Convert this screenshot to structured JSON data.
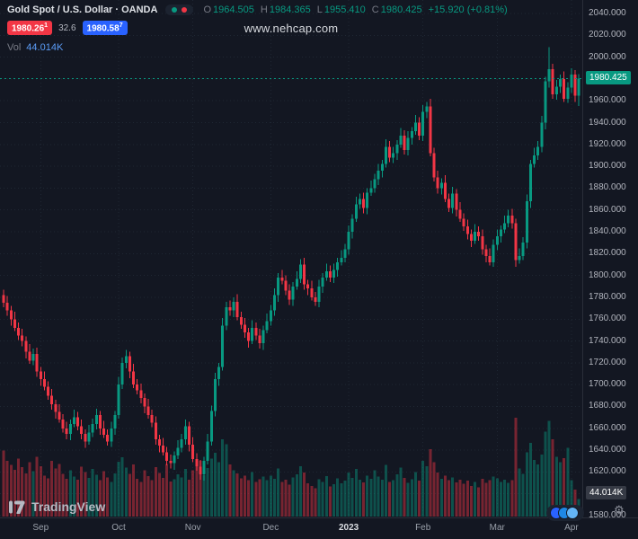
{
  "header": {
    "title": "Gold Spot / U.S. Dollar · OANDA",
    "ohlc": {
      "o_label": "O",
      "o_value": "1964.505",
      "h_label": "H",
      "h_value": "1984.365",
      "l_label": "L",
      "l_value": "1955.410",
      "c_label": "C",
      "c_value": "1980.425",
      "change": "+15.920 (+0.81%)"
    },
    "sell_price": "1980.26",
    "sell_sup": "1",
    "spread": "32.6",
    "buy_price": "1980.58",
    "buy_sup": "7",
    "vol_label": "Vol",
    "vol_value": "44.014K"
  },
  "watermark": "www.nehcap.com",
  "footer": {
    "brand": "TradingView"
  },
  "axis": {
    "current_price_label": "1980.425",
    "volume_axis_label": "44.014K"
  },
  "colors": {
    "background": "#131722",
    "grid": "#1f2733",
    "up": "#089981",
    "down": "#f23645",
    "sell_badge_bg": "#f23645",
    "buy_badge_bg": "#2962ff",
    "price_badge_bg": "#089981",
    "volume_badge_bg": "#363a45",
    "text": "#b2b5be",
    "text_dim": "#787b86",
    "vol_value_color": "#5b9cf6"
  },
  "chart_data": {
    "type": "candlestick",
    "title": "Gold Spot / U.S. Dollar · OANDA, daily",
    "legend_position": "top-left",
    "grid": true,
    "price_range": [
      1580,
      2040
    ],
    "grid_step": 20,
    "current_price": 1980.425,
    "last_volume_k": 44.014,
    "y_ticks": [
      "2040.000",
      "2020.000",
      "2000.000",
      "1980.000",
      "1960.000",
      "1940.000",
      "1920.000",
      "1900.000",
      "1880.000",
      "1860.000",
      "1840.000",
      "1820.000",
      "1800.000",
      "1780.000",
      "1760.000",
      "1740.000",
      "1720.000",
      "1700.000",
      "1680.000",
      "1660.000",
      "1640.000",
      "1620.000",
      "1600.000",
      "1580.000"
    ],
    "x_ticks": [
      {
        "label": "Sep",
        "i": 10,
        "strong": false
      },
      {
        "label": "Oct",
        "i": 31,
        "strong": false
      },
      {
        "label": "Nov",
        "i": 51,
        "strong": false
      },
      {
        "label": "Dec",
        "i": 72,
        "strong": false
      },
      {
        "label": "2023",
        "i": 93,
        "strong": true
      },
      {
        "label": "Feb",
        "i": 113,
        "strong": false
      },
      {
        "label": "Mar",
        "i": 133,
        "strong": false
      },
      {
        "label": "Apr",
        "i": 153,
        "strong": false
      }
    ],
    "candles_ohlc": [
      [
        1782,
        1787,
        1771,
        1775
      ],
      [
        1775,
        1781,
        1763,
        1768
      ],
      [
        1768,
        1772,
        1754,
        1760
      ],
      [
        1760,
        1767,
        1749,
        1752
      ],
      [
        1752,
        1757,
        1741,
        1745
      ],
      [
        1745,
        1751,
        1735,
        1740
      ],
      [
        1740,
        1744,
        1724,
        1730
      ],
      [
        1730,
        1737,
        1719,
        1722
      ],
      [
        1722,
        1733,
        1718,
        1728
      ],
      [
        1728,
        1734,
        1707,
        1712
      ],
      [
        1712,
        1716,
        1699,
        1705
      ],
      [
        1705,
        1712,
        1695,
        1698
      ],
      [
        1698,
        1703,
        1686,
        1690
      ],
      [
        1690,
        1696,
        1677,
        1682
      ],
      [
        1682,
        1686,
        1669,
        1675
      ],
      [
        1675,
        1682,
        1665,
        1668
      ],
      [
        1668,
        1673,
        1656,
        1660
      ],
      [
        1660,
        1666,
        1650,
        1655
      ],
      [
        1655,
        1668,
        1649,
        1664
      ],
      [
        1664,
        1677,
        1661,
        1670
      ],
      [
        1670,
        1675,
        1658,
        1662
      ],
      [
        1662,
        1668,
        1650,
        1655
      ],
      [
        1655,
        1659,
        1642,
        1648
      ],
      [
        1648,
        1663,
        1645,
        1656
      ],
      [
        1656,
        1669,
        1652,
        1664
      ],
      [
        1664,
        1678,
        1659,
        1672
      ],
      [
        1672,
        1676,
        1654,
        1660
      ],
      [
        1660,
        1667,
        1651,
        1654
      ],
      [
        1654,
        1659,
        1644,
        1648
      ],
      [
        1648,
        1666,
        1643,
        1660
      ],
      [
        1660,
        1676,
        1654,
        1672
      ],
      [
        1672,
        1707,
        1669,
        1700
      ],
      [
        1700,
        1725,
        1696,
        1720
      ],
      [
        1720,
        1732,
        1715,
        1726
      ],
      [
        1726,
        1730,
        1706,
        1712
      ],
      [
        1712,
        1719,
        1697,
        1700
      ],
      [
        1700,
        1705,
        1691,
        1695
      ],
      [
        1695,
        1701,
        1683,
        1688
      ],
      [
        1688,
        1692,
        1674,
        1680
      ],
      [
        1680,
        1687,
        1669,
        1672
      ],
      [
        1672,
        1677,
        1661,
        1665
      ],
      [
        1665,
        1671,
        1645,
        1650
      ],
      [
        1650,
        1654,
        1638,
        1644
      ],
      [
        1644,
        1651,
        1635,
        1638
      ],
      [
        1638,
        1643,
        1626,
        1630
      ],
      [
        1630,
        1636,
        1623,
        1628
      ],
      [
        1628,
        1639,
        1622,
        1635
      ],
      [
        1635,
        1649,
        1632,
        1642
      ],
      [
        1642,
        1655,
        1638,
        1650
      ],
      [
        1650,
        1668,
        1645,
        1662
      ],
      [
        1662,
        1666,
        1639,
        1645
      ],
      [
        1645,
        1652,
        1629,
        1632
      ],
      [
        1632,
        1637,
        1621,
        1625
      ],
      [
        1625,
        1631,
        1613,
        1618
      ],
      [
        1618,
        1634,
        1612,
        1630
      ],
      [
        1630,
        1655,
        1627,
        1648
      ],
      [
        1648,
        1681,
        1644,
        1676
      ],
      [
        1676,
        1711,
        1671,
        1705
      ],
      [
        1705,
        1720,
        1699,
        1716
      ],
      [
        1716,
        1761,
        1713,
        1754
      ],
      [
        1754,
        1776,
        1750,
        1771
      ],
      [
        1771,
        1777,
        1763,
        1768
      ],
      [
        1768,
        1780,
        1762,
        1776
      ],
      [
        1776,
        1783,
        1759,
        1762
      ],
      [
        1762,
        1767,
        1751,
        1755
      ],
      [
        1755,
        1761,
        1743,
        1748
      ],
      [
        1748,
        1752,
        1734,
        1740
      ],
      [
        1740,
        1759,
        1737,
        1752
      ],
      [
        1752,
        1757,
        1741,
        1745
      ],
      [
        1745,
        1751,
        1733,
        1738
      ],
      [
        1738,
        1754,
        1732,
        1750
      ],
      [
        1750,
        1765,
        1747,
        1758
      ],
      [
        1758,
        1773,
        1754,
        1768
      ],
      [
        1768,
        1788,
        1763,
        1782
      ],
      [
        1782,
        1802,
        1776,
        1798
      ],
      [
        1798,
        1805,
        1792,
        1795
      ],
      [
        1795,
        1800,
        1782,
        1786
      ],
      [
        1786,
        1792,
        1773,
        1778
      ],
      [
        1778,
        1794,
        1772,
        1790
      ],
      [
        1790,
        1804,
        1787,
        1797
      ],
      [
        1797,
        1815,
        1793,
        1810
      ],
      [
        1810,
        1816,
        1787,
        1792
      ],
      [
        1792,
        1796,
        1782,
        1788
      ],
      [
        1788,
        1795,
        1777,
        1780
      ],
      [
        1780,
        1785,
        1772,
        1776
      ],
      [
        1776,
        1796,
        1771,
        1790
      ],
      [
        1790,
        1802,
        1784,
        1798
      ],
      [
        1798,
        1811,
        1795,
        1804
      ],
      [
        1804,
        1809,
        1794,
        1798
      ],
      [
        1798,
        1811,
        1793,
        1805
      ],
      [
        1805,
        1816,
        1799,
        1812
      ],
      [
        1812,
        1823,
        1809,
        1816
      ],
      [
        1816,
        1829,
        1812,
        1824
      ],
      [
        1824,
        1846,
        1819,
        1840
      ],
      [
        1840,
        1856,
        1834,
        1852
      ],
      [
        1852,
        1872,
        1849,
        1865
      ],
      [
        1865,
        1875,
        1861,
        1870
      ],
      [
        1870,
        1876,
        1857,
        1862
      ],
      [
        1862,
        1880,
        1856,
        1876
      ],
      [
        1876,
        1887,
        1873,
        1880
      ],
      [
        1880,
        1893,
        1876,
        1888
      ],
      [
        1888,
        1902,
        1883,
        1896
      ],
      [
        1896,
        1906,
        1890,
        1902
      ],
      [
        1902,
        1925,
        1899,
        1918
      ],
      [
        1918,
        1923,
        1904,
        1908
      ],
      [
        1908,
        1918,
        1903,
        1912
      ],
      [
        1912,
        1924,
        1906,
        1920
      ],
      [
        1920,
        1935,
        1917,
        1928
      ],
      [
        1928,
        1933,
        1911,
        1915
      ],
      [
        1915,
        1932,
        1910,
        1926
      ],
      [
        1926,
        1936,
        1920,
        1932
      ],
      [
        1932,
        1947,
        1929,
        1940
      ],
      [
        1940,
        1945,
        1924,
        1928
      ],
      [
        1928,
        1956,
        1923,
        1950
      ],
      [
        1950,
        1959,
        1944,
        1955
      ],
      [
        1955,
        1962,
        1909,
        1912
      ],
      [
        1912,
        1917,
        1886,
        1890
      ],
      [
        1890,
        1896,
        1875,
        1880
      ],
      [
        1880,
        1889,
        1874,
        1885
      ],
      [
        1885,
        1892,
        1867,
        1870
      ],
      [
        1870,
        1875,
        1858,
        1862
      ],
      [
        1862,
        1881,
        1857,
        1875
      ],
      [
        1875,
        1879,
        1854,
        1860
      ],
      [
        1860,
        1867,
        1849,
        1852
      ],
      [
        1852,
        1857,
        1841,
        1845
      ],
      [
        1845,
        1851,
        1833,
        1838
      ],
      [
        1838,
        1842,
        1826,
        1832
      ],
      [
        1832,
        1847,
        1829,
        1840
      ],
      [
        1840,
        1845,
        1832,
        1836
      ],
      [
        1836,
        1842,
        1819,
        1824
      ],
      [
        1824,
        1828,
        1812,
        1818
      ],
      [
        1818,
        1825,
        1809,
        1812
      ],
      [
        1812,
        1833,
        1808,
        1828
      ],
      [
        1828,
        1842,
        1823,
        1836
      ],
      [
        1836,
        1846,
        1830,
        1842
      ],
      [
        1842,
        1855,
        1839,
        1848
      ],
      [
        1848,
        1860,
        1844,
        1855
      ],
      [
        1855,
        1861,
        1843,
        1848
      ],
      [
        1848,
        1852,
        1808,
        1814
      ],
      [
        1814,
        1825,
        1811,
        1818
      ],
      [
        1818,
        1835,
        1814,
        1830
      ],
      [
        1830,
        1874,
        1825,
        1868
      ],
      [
        1868,
        1906,
        1862,
        1902
      ],
      [
        1902,
        1917,
        1899,
        1910
      ],
      [
        1910,
        1923,
        1906,
        1918
      ],
      [
        1918,
        1946,
        1913,
        1940
      ],
      [
        1940,
        1982,
        1934,
        1978
      ],
      [
        1978,
        2009,
        1972,
        1989
      ],
      [
        1989,
        1994,
        1962,
        1966
      ],
      [
        1966,
        1979,
        1961,
        1973
      ],
      [
        1973,
        1984,
        1967,
        1980
      ],
      [
        1980,
        1987,
        1959,
        1962
      ],
      [
        1962,
        1977,
        1958,
        1972
      ],
      [
        1972,
        1990,
        1967,
        1984
      ],
      [
        1984,
        1988,
        1959,
        1964.5
      ],
      [
        1964.505,
        1984.365,
        1955.41,
        1980.425
      ]
    ],
    "volumes_k": [
      168,
      142,
      131,
      119,
      147,
      126,
      109,
      138,
      115,
      152,
      128,
      104,
      97,
      141,
      122,
      133,
      108,
      96,
      118,
      102,
      94,
      127,
      113,
      98,
      121,
      106,
      92,
      115,
      99,
      88,
      109,
      139,
      151,
      124,
      108,
      132,
      96,
      88,
      117,
      103,
      92,
      126,
      111,
      98,
      134,
      89,
      95,
      107,
      99,
      121,
      93,
      118,
      126,
      141,
      105,
      123,
      147,
      162,
      138,
      196,
      184,
      132,
      118,
      109,
      97,
      104,
      92,
      113,
      88,
      95,
      101,
      92,
      104,
      96,
      122,
      88,
      93,
      81,
      99,
      107,
      128,
      112,
      84,
      78,
      72,
      95,
      88,
      103,
      76,
      82,
      97,
      84,
      91,
      112,
      98,
      121,
      93,
      87,
      104,
      96,
      118,
      102,
      94,
      131,
      88,
      92,
      107,
      124,
      98,
      86,
      95,
      113,
      91,
      142,
      128,
      171,
      138,
      112,
      96,
      104,
      92,
      99,
      87,
      94,
      83,
      91,
      78,
      88,
      74,
      96,
      85,
      92,
      101,
      97,
      88,
      94,
      86,
      92,
      251,
      122,
      108,
      163,
      187,
      144,
      132,
      158,
      216,
      243,
      196,
      152,
      138,
      148,
      174,
      92,
      68,
      44.014
    ]
  }
}
